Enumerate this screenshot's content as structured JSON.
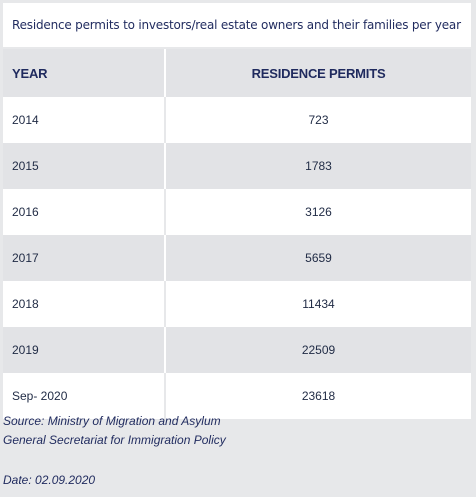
{
  "table": {
    "caption": "Residence permits to investors/real estate owners and their families per year",
    "headers": {
      "year": "YEAR",
      "permits": "RESIDENCE PERMITS"
    },
    "rows": [
      {
        "year": "2014",
        "permits": "723"
      },
      {
        "year": "2015",
        "permits": "1783"
      },
      {
        "year": "2016",
        "permits": "3126"
      },
      {
        "year": "2017",
        "permits": "5659"
      },
      {
        "year": "2018",
        "permits": "11434"
      },
      {
        "year": "2019",
        "permits": "22509"
      },
      {
        "year": "Sep- 2020",
        "permits": "23618"
      }
    ]
  },
  "footer": {
    "source_line1": "Source: Ministry of Migration and Asylum",
    "source_line2": "General Secretariat for Immigration Policy",
    "date": "Date: 02.09.2020"
  }
}
